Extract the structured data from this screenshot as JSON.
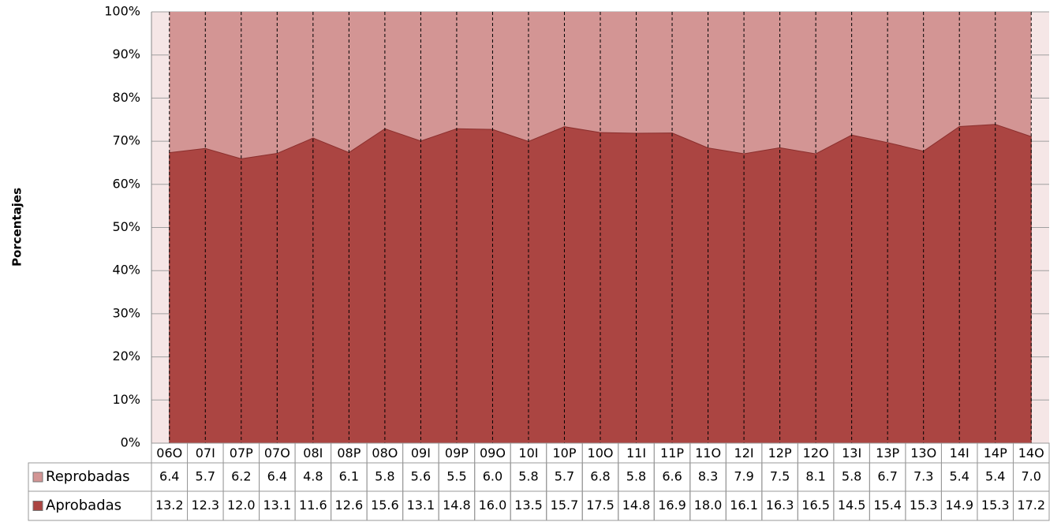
{
  "chart_data": {
    "type": "area",
    "stacking": "percent",
    "y_label": "Porcentajes",
    "categories": [
      "06O",
      "07I",
      "07P",
      "07O",
      "08I",
      "08P",
      "08O",
      "09I",
      "09P",
      "09O",
      "10I",
      "10P",
      "10O",
      "11I",
      "11P",
      "11O",
      "12I",
      "12P",
      "12O",
      "13I",
      "13P",
      "13O",
      "14I",
      "14P",
      "14O"
    ],
    "series": [
      {
        "name": "Reprobadas",
        "color": "#d39594",
        "values": [
          6.4,
          5.7,
          6.2,
          6.4,
          4.8,
          6.1,
          5.8,
          5.6,
          5.5,
          6.0,
          5.8,
          5.7,
          6.8,
          5.8,
          6.6,
          8.3,
          7.9,
          7.5,
          8.1,
          5.8,
          6.7,
          7.3,
          5.4,
          5.4,
          7.0
        ],
        "value_labels": [
          "6.4",
          "5.7",
          "6.2",
          "6.4",
          "4.8",
          "6.1",
          "5.8",
          "5.6",
          "5.5",
          "6.0",
          "5.8",
          "5.7",
          "6.8",
          "5.8",
          "6.6",
          "8.3",
          "7.9",
          "7.5",
          "8.1",
          "5.8",
          "6.7",
          "7.3",
          "5.4",
          "5.4",
          "7.0"
        ]
      },
      {
        "name": "Aprobadas",
        "color": "#ab4542",
        "values": [
          13.2,
          12.3,
          12.0,
          13.1,
          11.6,
          12.6,
          15.6,
          13.1,
          14.8,
          16.0,
          13.5,
          15.7,
          17.5,
          14.8,
          16.9,
          18.0,
          16.1,
          16.3,
          16.5,
          14.5,
          15.4,
          15.3,
          14.9,
          15.3,
          17.2
        ],
        "value_labels": [
          "13.2",
          "12.3",
          "12.0",
          "13.1",
          "11.6",
          "12.6",
          "15.6",
          "13.1",
          "14.8",
          "16.0",
          "13.5",
          "15.7",
          "17.5",
          "14.8",
          "16.9",
          "18.0",
          "16.1",
          "16.3",
          "16.5",
          "14.5",
          "15.4",
          "15.3",
          "14.9",
          "15.3",
          "17.2"
        ]
      }
    ],
    "ylim": [
      0,
      100
    ],
    "yticks": [
      {
        "value": 0,
        "label": "0%"
      },
      {
        "value": 10,
        "label": "10%"
      },
      {
        "value": 20,
        "label": "20%"
      },
      {
        "value": 30,
        "label": "30%"
      },
      {
        "value": 40,
        "label": "40%"
      },
      {
        "value": 50,
        "label": "50%"
      },
      {
        "value": 60,
        "label": "60%"
      },
      {
        "value": 70,
        "label": "70%"
      },
      {
        "value": 80,
        "label": "80%"
      },
      {
        "value": 90,
        "label": "90%"
      },
      {
        "value": 100,
        "label": "100%"
      }
    ],
    "grid": true
  }
}
